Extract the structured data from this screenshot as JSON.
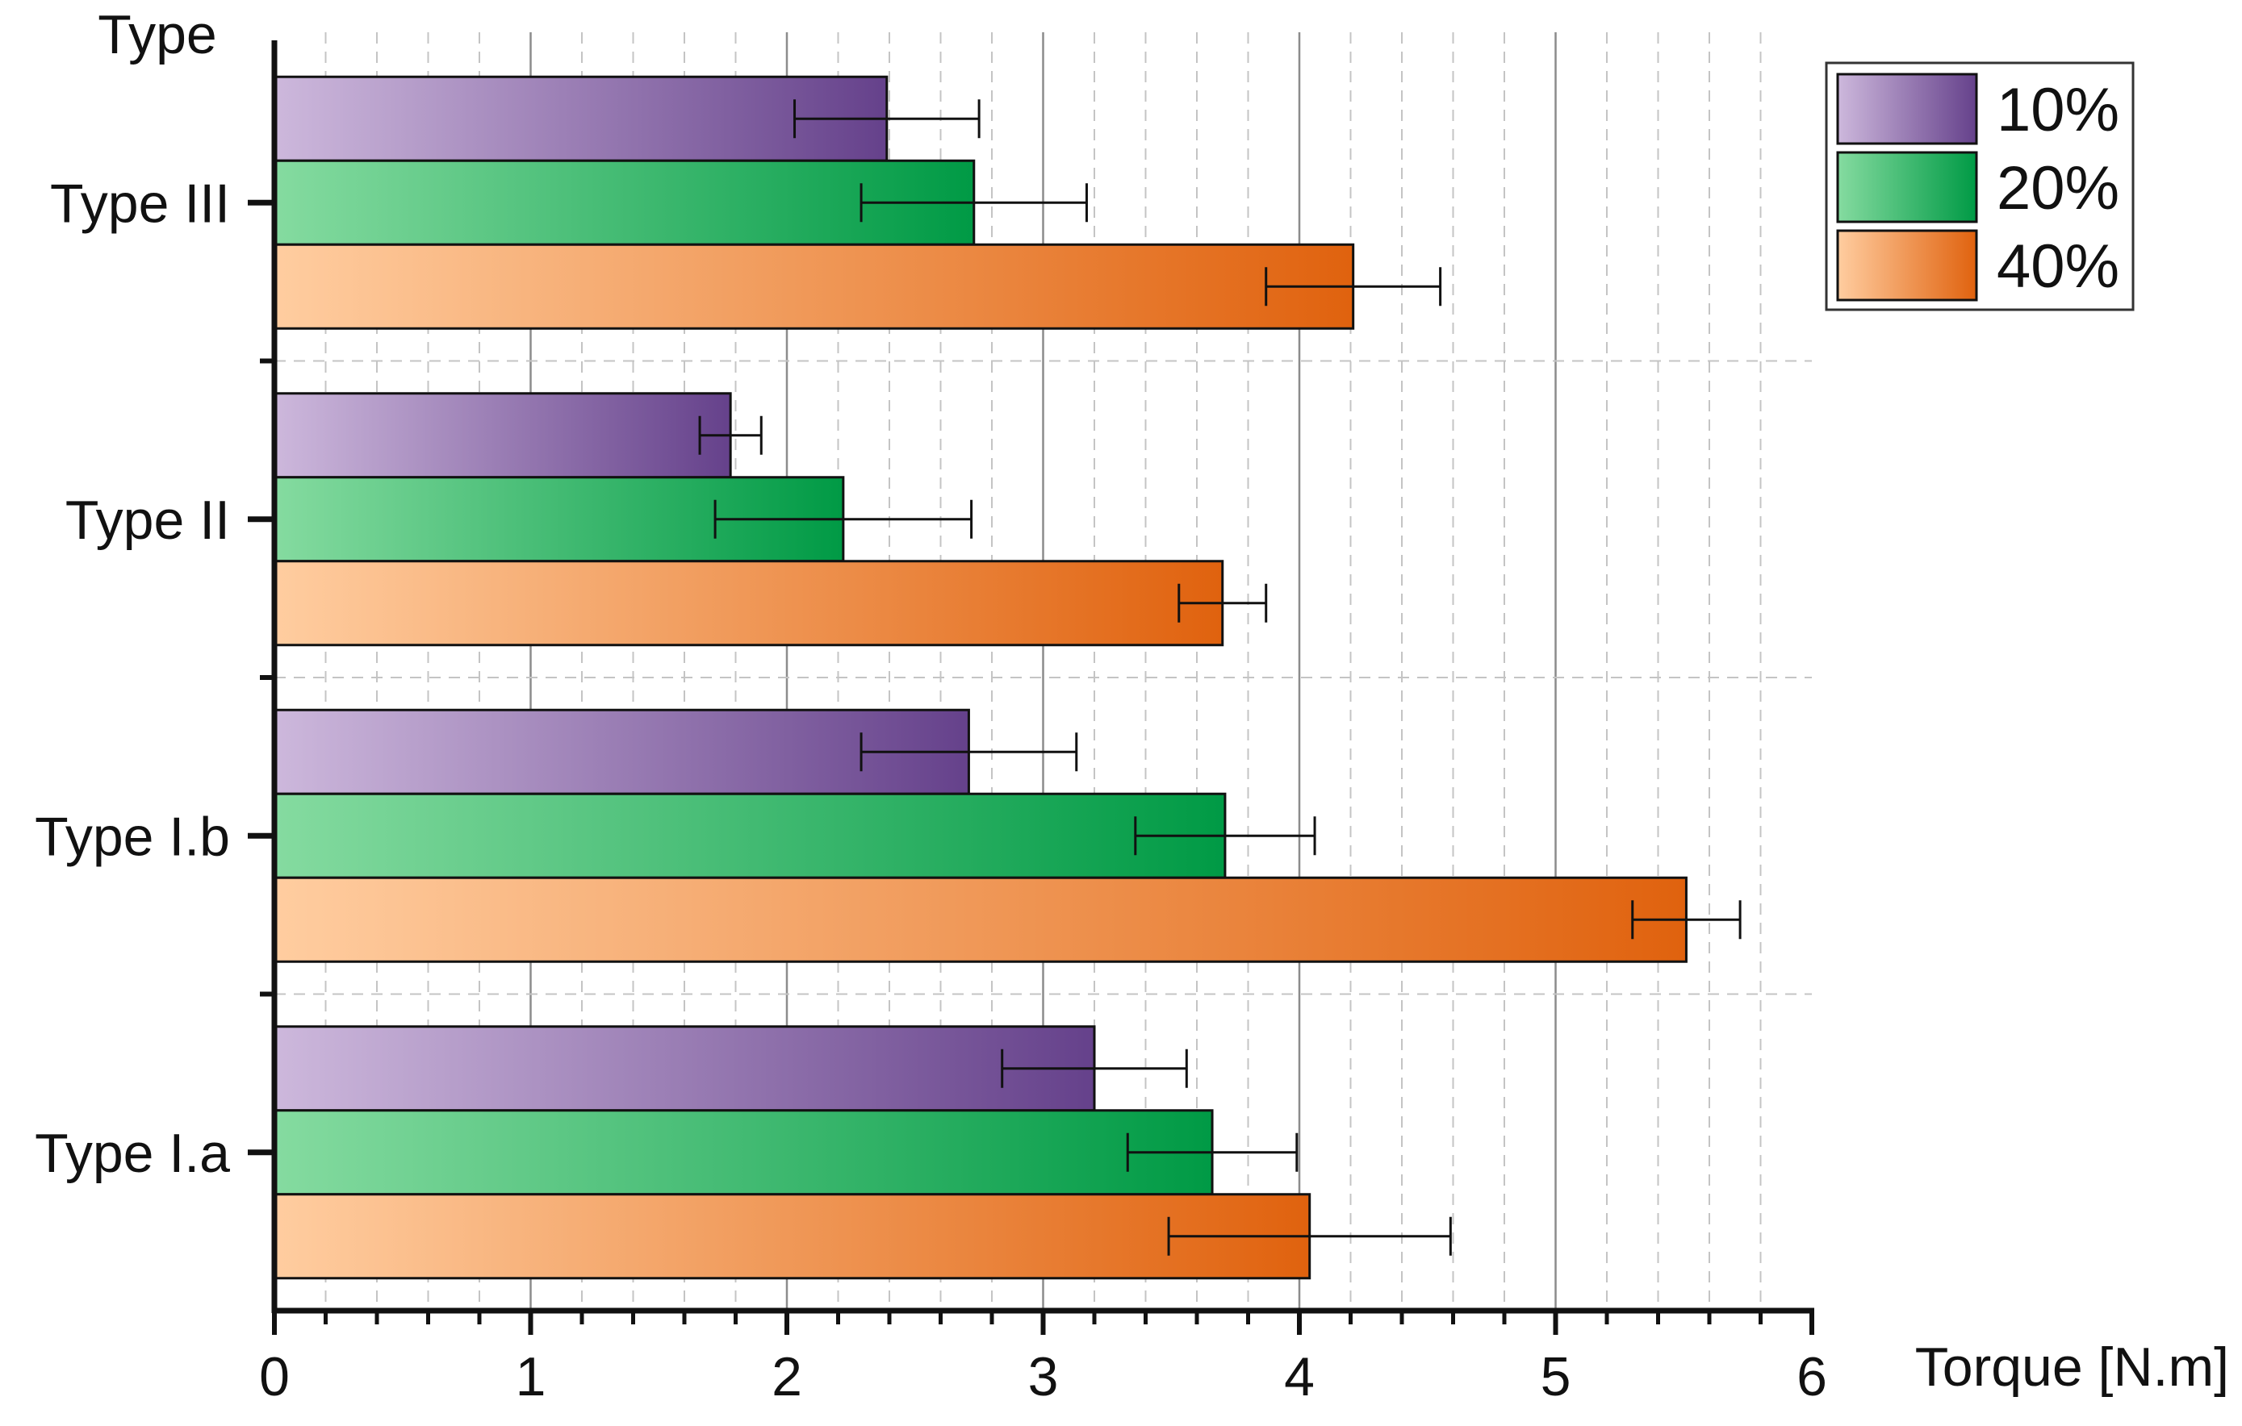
{
  "chart_data": {
    "type": "bar",
    "orientation": "horizontal",
    "title": "",
    "xlabel": "Torque [N.m]",
    "ylabel": "Type",
    "xlim": [
      0,
      6
    ],
    "x_ticks": [
      "0",
      "1",
      "2",
      "3",
      "4",
      "5",
      "6"
    ],
    "grid": true,
    "legend_position": "top-right",
    "categories": [
      "Type I.a",
      "Type I.b",
      "Type II",
      "Type III"
    ],
    "series": [
      {
        "name": "10%",
        "values": [
          3.2,
          2.71,
          1.78,
          2.39
        ],
        "errors": [
          0.36,
          0.42,
          0.12,
          0.36
        ],
        "color_light": "#cdb8dc",
        "color_dark": "#65418b"
      },
      {
        "name": "20%",
        "values": [
          3.66,
          3.71,
          2.22,
          2.73
        ],
        "errors": [
          0.33,
          0.35,
          0.5,
          0.44
        ],
        "color_light": "#85dba0",
        "color_dark": "#009a45"
      },
      {
        "name": "40%",
        "values": [
          4.04,
          5.51,
          3.7,
          4.21
        ],
        "errors": [
          0.55,
          0.21,
          0.17,
          0.34
        ],
        "color_light": "#ffcda0",
        "color_dark": "#e0620e"
      }
    ]
  }
}
